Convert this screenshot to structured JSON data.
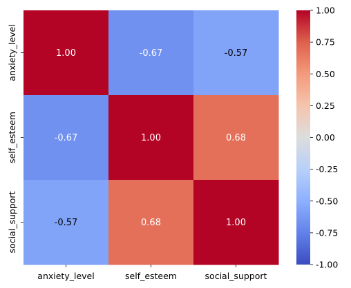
{
  "chart_data": {
    "type": "heatmap",
    "rows": [
      "anxiety_level",
      "self_esteem",
      "social_support"
    ],
    "columns": [
      "anxiety_level",
      "self_esteem",
      "social_support"
    ],
    "values": [
      [
        1.0,
        -0.67,
        -0.57
      ],
      [
        -0.67,
        1.0,
        0.68
      ],
      [
        -0.57,
        0.68,
        1.0
      ]
    ],
    "value_format": "0.00",
    "colormap": "coolwarm",
    "colorbar": {
      "min": -1.0,
      "max": 1.0,
      "ticks": [
        "1.00",
        "0.75",
        "0.50",
        "0.25",
        "0.00",
        "-0.25",
        "-0.50",
        "-0.75",
        "-1.00"
      ],
      "tick_values": [
        1.0,
        0.75,
        0.5,
        0.25,
        0.0,
        -0.25,
        -0.5,
        -0.75,
        -1.0
      ],
      "placement": "right"
    },
    "title": "",
    "xlabel": "",
    "ylabel": ""
  }
}
